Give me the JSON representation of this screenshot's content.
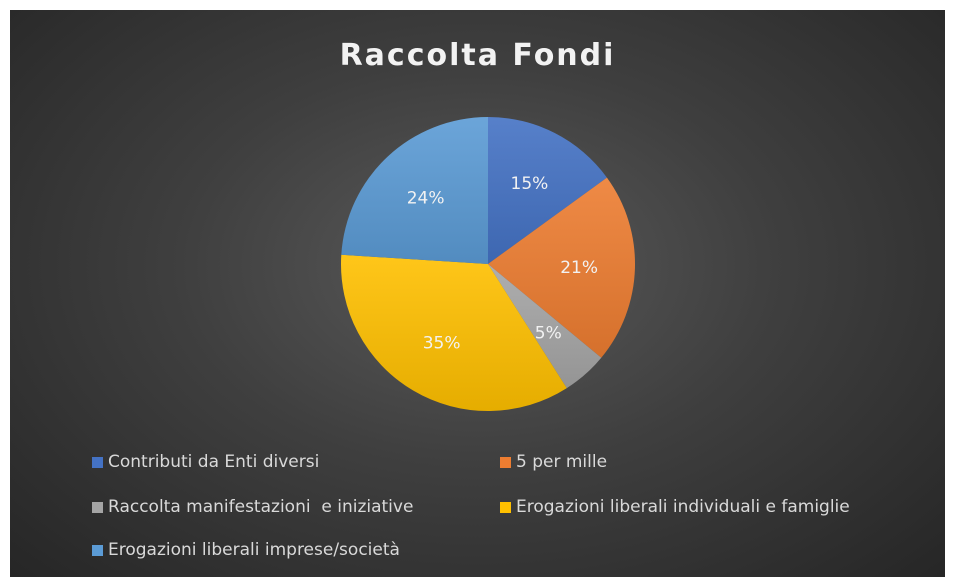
{
  "chart_data": {
    "type": "pie",
    "title": "Raccolta Fondi",
    "categories": [
      "Contributi da Enti diversi",
      "5 per mille",
      "Raccolta manifestazioni  e iniziative",
      "Erogazioni liberali individuali e famiglie",
      "Erogazioni liberali imprese/società"
    ],
    "values": [
      15,
      21,
      5,
      35,
      24
    ],
    "labels": [
      "15%",
      "21%",
      "5%",
      "35%",
      "24%"
    ],
    "colors": [
      "#4472c4",
      "#ed7d31",
      "#a5a5a5",
      "#ffc000",
      "#5b9bd5"
    ],
    "legend_position": "bottom"
  }
}
